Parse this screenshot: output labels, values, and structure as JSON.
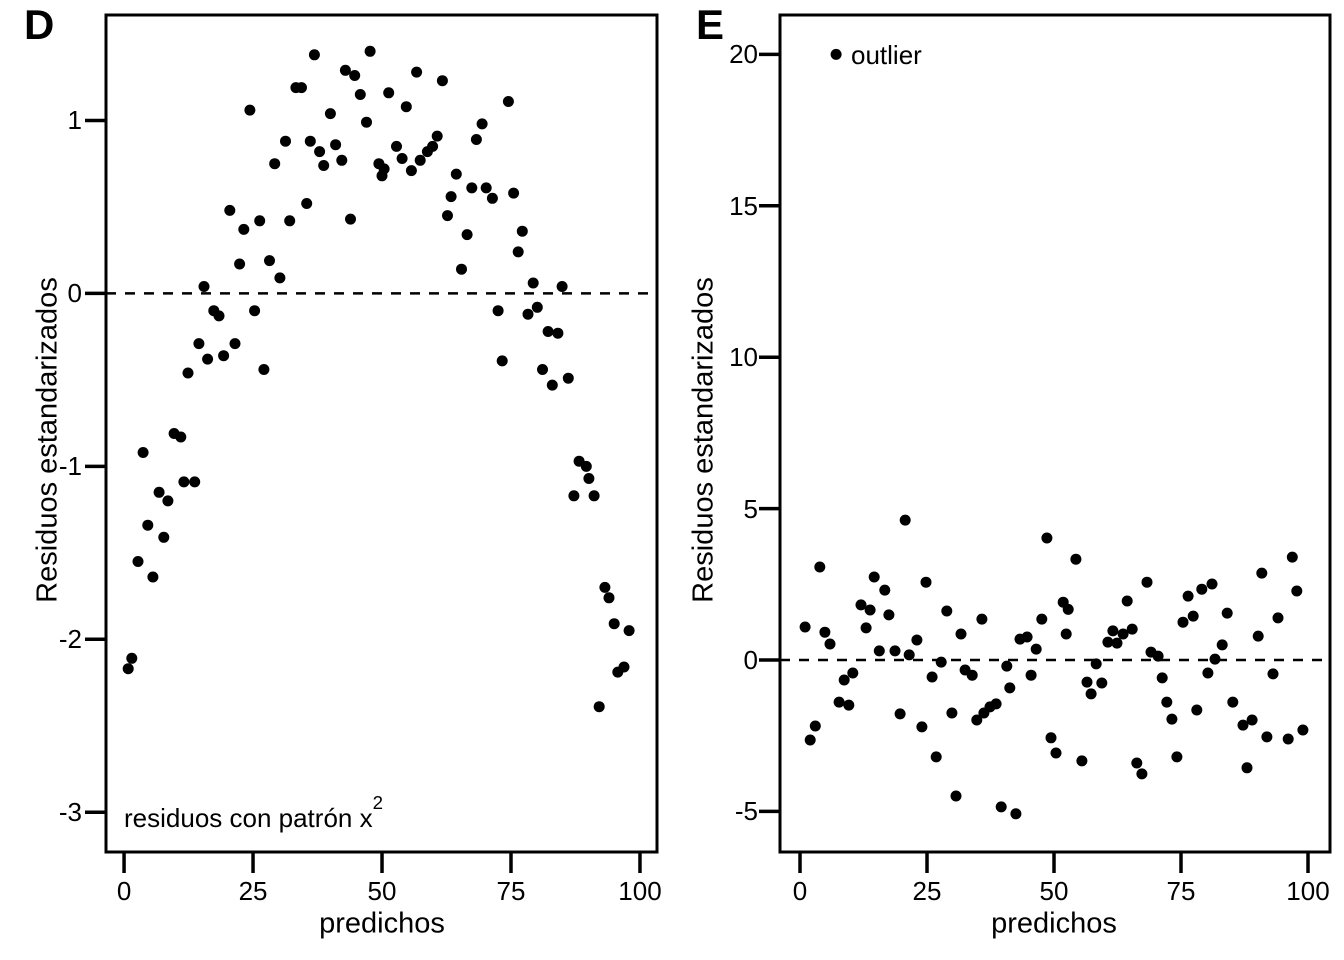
{
  "styles": {
    "point_color": "#000000",
    "axis_color": "#000000",
    "background": "#ffffff"
  },
  "chart_data": [
    {
      "type": "scatter",
      "panel_label": "D",
      "xlabel": "predichos",
      "ylabel": "Residuos estandarizados",
      "x_ticks": [
        0,
        25,
        50,
        75,
        100
      ],
      "y_ticks": [
        1,
        0,
        -1,
        -2,
        -3
      ],
      "xlim": [
        -3.5,
        103.3
      ],
      "ylim": [
        -3.23,
        1.61
      ],
      "zero_line_y": 0,
      "grid": false,
      "legend": null,
      "annotation": {
        "text": "residuos con patrón x",
        "sup": "2",
        "x": 0,
        "y": -3.03
      },
      "points": [
        [
          0.8,
          -2.17
        ],
        [
          1.5,
          -2.11
        ],
        [
          2.7,
          -1.55
        ],
        [
          3.7,
          -0.92
        ],
        [
          4.6,
          -1.34
        ],
        [
          5.6,
          -1.64
        ],
        [
          6.8,
          -1.15
        ],
        [
          7.7,
          -1.41
        ],
        [
          8.5,
          -1.2
        ],
        [
          9.7,
          -0.81
        ],
        [
          11,
          -0.83
        ],
        [
          11.6,
          -1.09
        ],
        [
          13.7,
          -1.09
        ],
        [
          12.4,
          -0.46
        ],
        [
          14.5,
          -0.29
        ],
        [
          15.5,
          0.04
        ],
        [
          16.2,
          -0.38
        ],
        [
          17.4,
          -0.1
        ],
        [
          18.4,
          -0.13
        ],
        [
          19.3,
          -0.36
        ],
        [
          20.5,
          0.48
        ],
        [
          21.5,
          -0.29
        ],
        [
          22.4,
          0.17
        ],
        [
          23.2,
          0.37
        ],
        [
          24.4,
          1.06
        ],
        [
          25.3,
          -0.1
        ],
        [
          26.3,
          0.42
        ],
        [
          27.1,
          -0.44
        ],
        [
          28.2,
          0.19
        ],
        [
          29.2,
          0.75
        ],
        [
          30.2,
          0.09
        ],
        [
          31.3,
          0.88
        ],
        [
          32.1,
          0.42
        ],
        [
          33.3,
          1.19
        ],
        [
          34.4,
          1.19
        ],
        [
          35.4,
          0.52
        ],
        [
          36.1,
          0.88
        ],
        [
          36.9,
          1.38
        ],
        [
          37.9,
          0.82
        ],
        [
          38.7,
          0.74
        ],
        [
          40,
          1.04
        ],
        [
          41,
          0.86
        ],
        [
          42.2,
          0.77
        ],
        [
          42.9,
          1.29
        ],
        [
          43.9,
          0.43
        ],
        [
          44.7,
          1.26
        ],
        [
          45.8,
          1.15
        ],
        [
          47,
          0.99
        ],
        [
          47.7,
          1.4
        ],
        [
          49.4,
          0.75
        ],
        [
          50,
          0.68
        ],
        [
          50.4,
          0.72
        ],
        [
          51.3,
          1.16
        ],
        [
          52.8,
          0.85
        ],
        [
          53.9,
          0.78
        ],
        [
          54.7,
          1.08
        ],
        [
          55.7,
          0.71
        ],
        [
          56.7,
          1.28
        ],
        [
          57.4,
          0.77
        ],
        [
          58.8,
          0.82
        ],
        [
          59.8,
          0.85
        ],
        [
          60.7,
          0.91
        ],
        [
          61.7,
          1.23
        ],
        [
          62.7,
          0.45
        ],
        [
          63.4,
          0.56
        ],
        [
          64.4,
          0.69
        ],
        [
          65.4,
          0.14
        ],
        [
          66.5,
          0.34
        ],
        [
          67.4,
          0.61
        ],
        [
          68.3,
          0.89
        ],
        [
          69.4,
          0.98
        ],
        [
          70.2,
          0.61
        ],
        [
          71.4,
          0.55
        ],
        [
          72.5,
          -0.1
        ],
        [
          73.3,
          -0.39
        ],
        [
          74.5,
          1.11
        ],
        [
          75.5,
          0.58
        ],
        [
          76.4,
          0.24
        ],
        [
          77.2,
          0.36
        ],
        [
          78.3,
          -0.12
        ],
        [
          79.3,
          0.06
        ],
        [
          80.1,
          -0.08
        ],
        [
          81.1,
          -0.44
        ],
        [
          82.2,
          -0.22
        ],
        [
          83,
          -0.53
        ],
        [
          84.1,
          -0.23
        ],
        [
          84.9,
          0.04
        ],
        [
          86.1,
          -0.49
        ],
        [
          87.2,
          -1.17
        ],
        [
          88.2,
          -0.97
        ],
        [
          89.6,
          -1
        ],
        [
          90.1,
          -1.07
        ],
        [
          91.1,
          -1.17
        ],
        [
          92.1,
          -2.39
        ],
        [
          93.2,
          -1.7
        ],
        [
          94,
          -1.76
        ],
        [
          95,
          -1.91
        ],
        [
          95.7,
          -2.19
        ],
        [
          96.9,
          -2.16
        ],
        [
          97.9,
          -1.95
        ]
      ]
    },
    {
      "type": "scatter",
      "panel_label": "E",
      "xlabel": "predichos",
      "ylabel": "Residuos estandarizados",
      "x_ticks": [
        0,
        25,
        50,
        75,
        100
      ],
      "y_ticks": [
        20,
        15,
        10,
        5,
        0,
        -5
      ],
      "xlim": [
        -3.94,
        104.33
      ],
      "ylim": [
        -6.34,
        21.3
      ],
      "zero_line_y": 0,
      "grid": false,
      "outlier": {
        "x": 7.1,
        "y": 20,
        "label": "outlier",
        "label_x": 10
      },
      "annotation": null,
      "points": [
        [
          1,
          1.09
        ],
        [
          2,
          -2.64
        ],
        [
          3,
          -2.18
        ],
        [
          3.9,
          3.07
        ],
        [
          4.9,
          0.92
        ],
        [
          5.9,
          0.53
        ],
        [
          7.7,
          -1.39
        ],
        [
          8.7,
          -0.66
        ],
        [
          9.6,
          -1.49
        ],
        [
          10.4,
          -0.43
        ],
        [
          12,
          1.82
        ],
        [
          13,
          1.06
        ],
        [
          13.8,
          1.65
        ],
        [
          14.6,
          2.74
        ],
        [
          15.6,
          0.3
        ],
        [
          16.7,
          2.31
        ],
        [
          17.5,
          1.49
        ],
        [
          18.7,
          0.3
        ],
        [
          19.7,
          -1.78
        ],
        [
          20.7,
          4.62
        ],
        [
          21.5,
          0.17
        ],
        [
          23,
          0.66
        ],
        [
          24,
          -2.21
        ],
        [
          24.8,
          2.57
        ],
        [
          26,
          -0.56
        ],
        [
          26.8,
          -3.2
        ],
        [
          27.8,
          -0.07
        ],
        [
          28.9,
          1.62
        ],
        [
          29.9,
          -1.75
        ],
        [
          30.7,
          -4.49
        ],
        [
          31.7,
          0.86
        ],
        [
          32.5,
          -0.33
        ],
        [
          33.9,
          -0.5
        ],
        [
          34.8,
          -1.98
        ],
        [
          35.8,
          1.35
        ],
        [
          36.2,
          -1.75
        ],
        [
          37.4,
          -1.55
        ],
        [
          38.6,
          -1.45
        ],
        [
          39.6,
          -4.85
        ],
        [
          40.7,
          -0.2
        ],
        [
          41.3,
          -0.92
        ],
        [
          42.5,
          -5.08
        ],
        [
          43.3,
          0.69
        ],
        [
          44.7,
          0.76
        ],
        [
          45.5,
          -0.5
        ],
        [
          46.5,
          0.36
        ],
        [
          47.6,
          1.35
        ],
        [
          48.6,
          4.03
        ],
        [
          49.4,
          -2.57
        ],
        [
          50.4,
          -3.07
        ],
        [
          51.8,
          1.91
        ],
        [
          52.4,
          0.86
        ],
        [
          52.8,
          1.67
        ],
        [
          54.3,
          3.33
        ],
        [
          55.5,
          -3.33
        ],
        [
          56.5,
          -0.73
        ],
        [
          57.3,
          -1.12
        ],
        [
          58.3,
          -0.13
        ],
        [
          59.4,
          -0.76
        ],
        [
          60.6,
          0.59
        ],
        [
          61.6,
          0.96
        ],
        [
          62.4,
          0.56
        ],
        [
          63.6,
          0.86
        ],
        [
          64.4,
          1.95
        ],
        [
          65.4,
          1.02
        ],
        [
          66.3,
          -3.4
        ],
        [
          67.3,
          -3.76
        ],
        [
          68.3,
          2.57
        ],
        [
          69.1,
          0.26
        ],
        [
          70.5,
          0.13
        ],
        [
          71.3,
          -0.59
        ],
        [
          72.2,
          -1.39
        ],
        [
          73.2,
          -1.95
        ],
        [
          74.2,
          -3.2
        ],
        [
          75.4,
          1.25
        ],
        [
          76.4,
          2.11
        ],
        [
          77.4,
          1.45
        ],
        [
          78.1,
          -1.65
        ],
        [
          79.1,
          2.34
        ],
        [
          80.3,
          -0.43
        ],
        [
          81.1,
          2.51
        ],
        [
          81.7,
          0.03
        ],
        [
          83.1,
          0.5
        ],
        [
          84.1,
          1.55
        ],
        [
          85.2,
          -1.39
        ],
        [
          87.2,
          -2.15
        ],
        [
          88,
          -3.56
        ],
        [
          89,
          -1.98
        ],
        [
          90.2,
          0.79
        ],
        [
          90.9,
          2.87
        ],
        [
          91.9,
          -2.54
        ],
        [
          93.1,
          -0.46
        ],
        [
          94.1,
          1.39
        ],
        [
          96.1,
          -2.61
        ],
        [
          96.9,
          3.4
        ],
        [
          97.8,
          2.28
        ],
        [
          99,
          -2.31
        ]
      ]
    }
  ]
}
